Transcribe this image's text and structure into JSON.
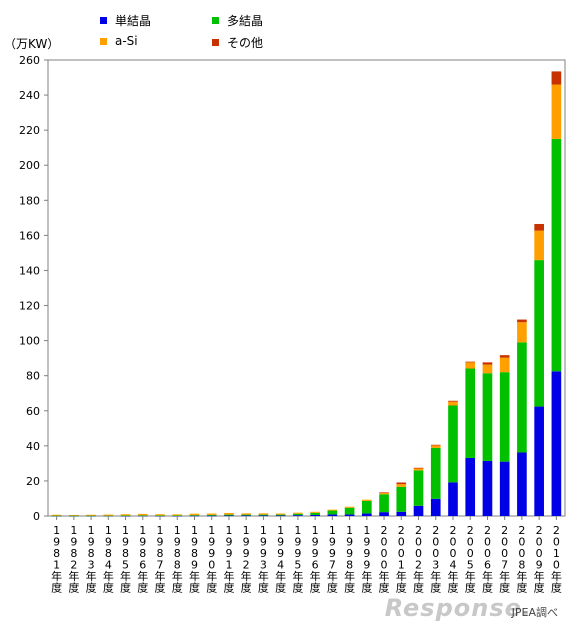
{
  "chart_data": {
    "type": "bar",
    "stacked": true,
    "unit_label": "（万KW）",
    "source_note": "JPEA調べ",
    "watermark": "Response.",
    "ylim": [
      0,
      260
    ],
    "yticks": [
      "0",
      "20",
      "40",
      "60",
      "80",
      "100",
      "120",
      "140",
      "160",
      "180",
      "200",
      "220",
      "240",
      "260"
    ],
    "category_suffix": "年度",
    "categories": [
      "1981",
      "1982",
      "1983",
      "1984",
      "1985",
      "1986",
      "1987",
      "1988",
      "1989",
      "1990",
      "1991",
      "1992",
      "1993",
      "1994",
      "1995",
      "1996",
      "1997",
      "1998",
      "1999",
      "2000",
      "2001",
      "2002",
      "2003",
      "2004",
      "2005",
      "2006",
      "2007",
      "2008",
      "2009",
      "2010"
    ],
    "series": [
      {
        "name": "単結晶",
        "color": "#0000e6",
        "values": [
          0.1,
          0.1,
          0.1,
          0.1,
          0.1,
          0.2,
          0.1,
          0.1,
          0.2,
          0.2,
          0.3,
          0.3,
          0.3,
          0.3,
          0.5,
          0.6,
          0.9,
          0.9,
          1.4,
          2.2,
          2.4,
          5.8,
          9.8,
          19.2,
          33.1,
          31.4,
          31,
          36.2,
          62.4,
          82.5
        ]
      },
      {
        "name": "多結晶",
        "color": "#00c000",
        "values": [
          0.1,
          0.1,
          0.1,
          0.1,
          0.2,
          0.2,
          0.2,
          0.2,
          0.3,
          0.4,
          0.5,
          0.5,
          0.5,
          0.5,
          0.8,
          1.2,
          2.2,
          3.8,
          7.2,
          10.2,
          14.2,
          20.2,
          29,
          43.8,
          51,
          50,
          51,
          62.8,
          83.5,
          132.5
        ]
      },
      {
        "name": "a-Si",
        "color": "#ffa000",
        "values": [
          0.5,
          0.4,
          0.5,
          0.6,
          0.7,
          0.8,
          0.7,
          0.6,
          0.8,
          0.8,
          0.9,
          0.7,
          0.7,
          0.6,
          0.6,
          0.6,
          0.5,
          0.6,
          0.7,
          0.8,
          1.6,
          1.1,
          1.5,
          2.2,
          3.5,
          4.9,
          8.3,
          11.5,
          16.8,
          31
        ]
      },
      {
        "name": "その他",
        "color": "#c83200",
        "values": [
          0,
          0,
          0,
          0,
          0,
          0,
          0,
          0,
          0,
          0,
          0,
          0,
          0,
          0,
          0,
          0,
          0,
          0,
          0,
          0.3,
          0.9,
          0.4,
          0.3,
          0.5,
          0.4,
          1.3,
          1.4,
          1.5,
          3.8,
          7.5
        ]
      }
    ]
  }
}
